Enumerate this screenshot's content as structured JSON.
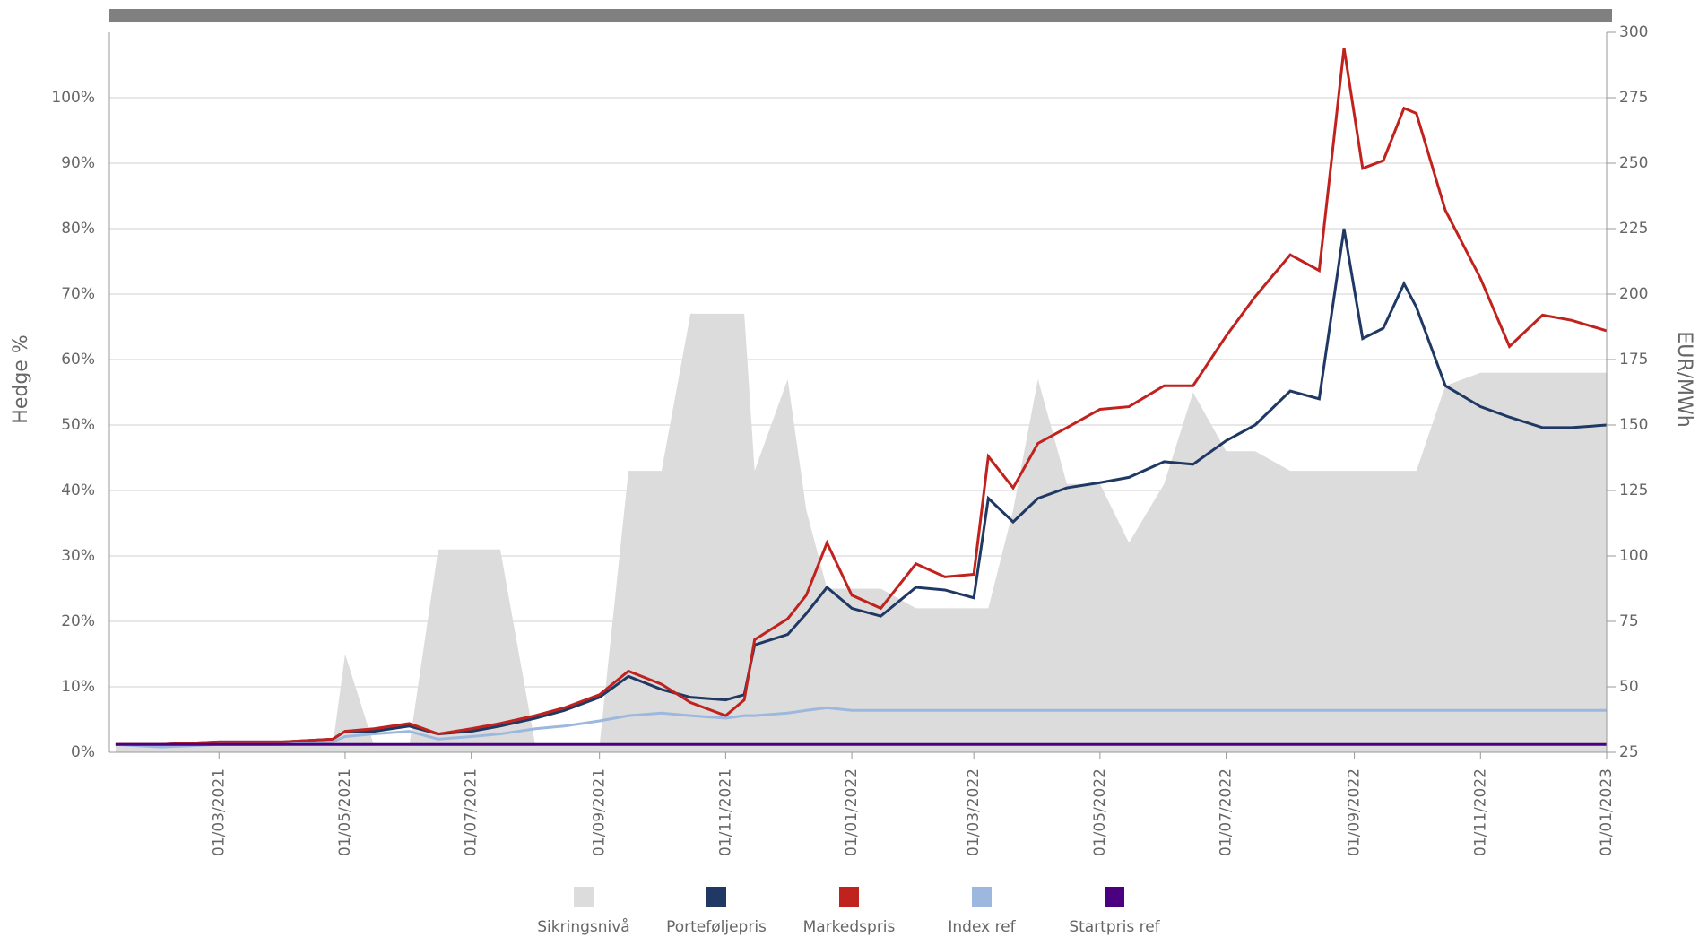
{
  "chart_data": {
    "type": "line",
    "ylabel": "Hedge %",
    "y2label": "EUR/MWh",
    "xlim": [
      "2021-01-07",
      "2023-01-01"
    ],
    "xticks": [
      {
        "value": "2021-03-01",
        "label": "01/03/2021"
      },
      {
        "value": "2021-05-01",
        "label": "01/05/2021"
      },
      {
        "value": "2021-07-01",
        "label": "01/07/2021"
      },
      {
        "value": "2021-09-01",
        "label": "01/09/2021"
      },
      {
        "value": "2021-11-01",
        "label": "01/11/2021"
      },
      {
        "value": "2022-01-01",
        "label": "01/01/2022"
      },
      {
        "value": "2022-03-01",
        "label": "01/03/2022"
      },
      {
        "value": "2022-05-01",
        "label": "01/05/2022"
      },
      {
        "value": "2022-07-01",
        "label": "01/07/2022"
      },
      {
        "value": "2022-09-01",
        "label": "01/09/2022"
      },
      {
        "value": "2022-11-01",
        "label": "01/11/2022"
      },
      {
        "value": "2023-01-01",
        "label": "01/01/2023"
      }
    ],
    "ylim": [
      0,
      110
    ],
    "yticks": [
      {
        "value": 0,
        "label": "0%"
      },
      {
        "value": 10,
        "label": "10%"
      },
      {
        "value": 20,
        "label": "20%"
      },
      {
        "value": 30,
        "label": "30%"
      },
      {
        "value": 40,
        "label": "40%"
      },
      {
        "value": 50,
        "label": "50%"
      },
      {
        "value": 60,
        "label": "60%"
      },
      {
        "value": 70,
        "label": "70%"
      },
      {
        "value": 80,
        "label": "80%"
      },
      {
        "value": 90,
        "label": "90%"
      },
      {
        "value": 100,
        "label": "100%"
      }
    ],
    "y2lim": [
      25,
      300
    ],
    "y2ticks": [
      25,
      50,
      75,
      100,
      125,
      150,
      175,
      200,
      225,
      250,
      275,
      300
    ],
    "grid": true,
    "legend": "bottom",
    "x": [
      "2021-01-10",
      "2021-02-01",
      "2021-03-01",
      "2021-04-01",
      "2021-04-25",
      "2021-05-01",
      "2021-05-15",
      "2021-06-01",
      "2021-06-15",
      "2021-07-01",
      "2021-07-15",
      "2021-08-01",
      "2021-08-15",
      "2021-09-01",
      "2021-09-15",
      "2021-10-01",
      "2021-10-15",
      "2021-11-01",
      "2021-11-10",
      "2021-11-15",
      "2021-12-01",
      "2021-12-10",
      "2021-12-20",
      "2022-01-01",
      "2022-01-15",
      "2022-02-01",
      "2022-02-15",
      "2022-03-01",
      "2022-03-08",
      "2022-03-20",
      "2022-04-01",
      "2022-04-15",
      "2022-05-01",
      "2022-05-15",
      "2022-06-01",
      "2022-06-15",
      "2022-07-01",
      "2022-07-15",
      "2022-08-01",
      "2022-08-15",
      "2022-08-27",
      "2022-09-05",
      "2022-09-15",
      "2022-09-25",
      "2022-10-01",
      "2022-10-15",
      "2022-11-01",
      "2022-11-15",
      "2022-12-01",
      "2022-12-15",
      "2023-01-01"
    ],
    "series": [
      {
        "name": "Sikringsnivå",
        "type": "area",
        "axis": "y",
        "color": "#dcdcdc",
        "values": [
          1,
          1,
          1,
          1,
          1,
          15,
          1,
          1,
          31,
          31,
          31,
          1,
          1,
          1,
          43,
          43,
          67,
          67,
          67,
          43,
          57,
          37,
          25,
          25,
          25,
          22,
          22,
          22,
          22,
          37,
          57,
          41,
          41,
          32,
          41,
          55,
          46,
          46,
          43,
          43,
          43,
          43,
          43,
          43,
          43,
          56,
          58,
          58,
          58,
          58,
          58
        ]
      },
      {
        "name": "Porteføljepris",
        "type": "line",
        "axis": "y2",
        "color": "#1f3864",
        "values": [
          28,
          28,
          29,
          29,
          30,
          33,
          33,
          35,
          32,
          33,
          35,
          38,
          41,
          46,
          54,
          49,
          46,
          45,
          47,
          66,
          70,
          78,
          88,
          80,
          77,
          88,
          87,
          84,
          122,
          113,
          122,
          126,
          128,
          130,
          136,
          135,
          144,
          150,
          163,
          160,
          225,
          183,
          187,
          204,
          195,
          165,
          157,
          153,
          149,
          149,
          150
        ]
      },
      {
        "name": "Markedspris",
        "type": "line",
        "axis": "y2",
        "color": "#c0221e",
        "values": [
          28,
          28,
          29,
          29,
          30,
          33,
          34,
          36,
          32,
          34,
          36,
          39,
          42,
          47,
          56,
          51,
          44,
          39,
          45,
          68,
          76,
          85,
          105,
          85,
          80,
          97,
          92,
          93,
          138,
          126,
          143,
          149,
          156,
          157,
          165,
          165,
          184,
          199,
          215,
          209,
          294,
          248,
          251,
          271,
          269,
          232,
          206,
          180,
          192,
          190,
          186
        ]
      },
      {
        "name": "Index ref",
        "type": "line",
        "axis": "y2",
        "color": "#9db8de",
        "values": [
          28,
          27,
          28,
          28,
          29,
          31,
          32,
          33,
          30,
          31,
          32,
          34,
          35,
          37,
          39,
          40,
          39,
          38,
          39,
          39,
          40,
          41,
          42,
          41,
          41,
          41,
          41,
          41,
          41,
          41,
          41,
          41,
          41,
          41,
          41,
          41,
          41,
          41,
          41,
          41,
          41,
          41,
          41,
          41,
          41,
          41,
          41,
          41,
          41,
          41,
          41
        ]
      },
      {
        "name": "Startpris ref",
        "type": "line",
        "axis": "y2",
        "color": "#4b0082",
        "values": [
          28,
          28,
          28,
          28,
          28,
          28,
          28,
          28,
          28,
          28,
          28,
          28,
          28,
          28,
          28,
          28,
          28,
          28,
          28,
          28,
          28,
          28,
          28,
          28,
          28,
          28,
          28,
          28,
          28,
          28,
          28,
          28,
          28,
          28,
          28,
          28,
          28,
          28,
          28,
          28,
          28,
          28,
          28,
          28,
          28,
          28,
          28,
          28,
          28,
          28,
          28
        ]
      }
    ]
  }
}
